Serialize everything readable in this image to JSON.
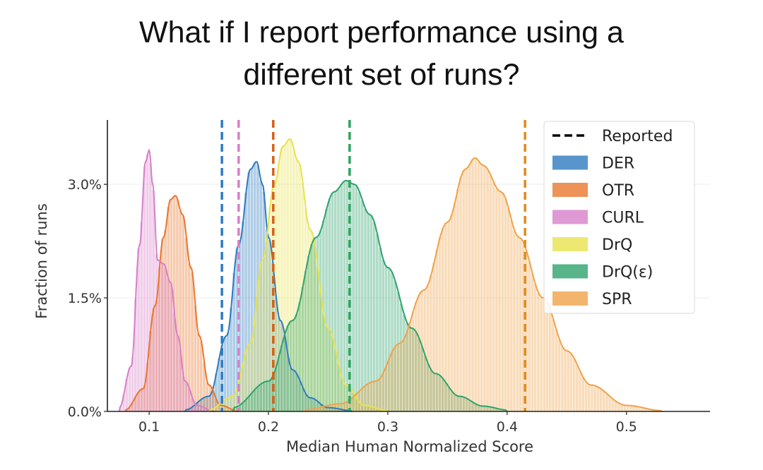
{
  "title_line1": "What if I report performance using a",
  "title_line2": "different set of runs?",
  "chart_data": {
    "type": "area",
    "xlabel": "Median Human Normalized Score",
    "ylabel": "Fraction of runs",
    "xlim": [
      0.065,
      0.57
    ],
    "ylim": [
      0,
      3.85
    ],
    "xticks": [
      0.1,
      0.2,
      0.3,
      0.4,
      0.5
    ],
    "xtick_labels": [
      "0.1",
      "0.2",
      "0.3",
      "0.4",
      "0.5"
    ],
    "yticks": [
      0,
      1.5,
      3.0
    ],
    "ytick_labels": [
      "0.0%",
      "1.5%",
      "3.0%"
    ],
    "grid": true,
    "legend_position": "top-right",
    "legend_reported_label": "Reported",
    "series": [
      {
        "name": "DER",
        "color": "#2e7bbf",
        "reported": 0.161,
        "x": [
          0.13,
          0.15,
          0.165,
          0.175,
          0.185,
          0.19,
          0.195,
          0.2,
          0.21,
          0.22,
          0.235,
          0.25,
          0.27
        ],
        "y": [
          0.02,
          0.2,
          1.0,
          2.2,
          3.2,
          3.3,
          3.0,
          2.3,
          1.2,
          0.55,
          0.18,
          0.05,
          0.01
        ]
      },
      {
        "name": "OTR",
        "color": "#e8772e",
        "reported": 0.204,
        "x": [
          0.08,
          0.095,
          0.105,
          0.112,
          0.118,
          0.122,
          0.128,
          0.135,
          0.142,
          0.15,
          0.16,
          0.175
        ],
        "y": [
          0.02,
          0.3,
          1.4,
          2.3,
          2.8,
          2.85,
          2.6,
          1.9,
          1.0,
          0.35,
          0.08,
          0.0
        ]
      },
      {
        "name": "CURL",
        "color": "#d77fc9",
        "reported": 0.175,
        "x": [
          0.075,
          0.085,
          0.092,
          0.097,
          0.1,
          0.103,
          0.107,
          0.112,
          0.118,
          0.124,
          0.13,
          0.14,
          0.155
        ],
        "y": [
          0.05,
          0.6,
          2.2,
          3.3,
          3.45,
          3.0,
          2.0,
          1.95,
          1.7,
          1.0,
          0.4,
          0.08,
          0.0
        ]
      },
      {
        "name": "DrQ",
        "color": "#e8e24f",
        "reported": 0.268,
        "x": [
          0.15,
          0.17,
          0.185,
          0.195,
          0.205,
          0.212,
          0.218,
          0.225,
          0.235,
          0.25,
          0.265,
          0.28,
          0.3
        ],
        "y": [
          0.02,
          0.2,
          0.9,
          2.0,
          3.0,
          3.5,
          3.6,
          3.3,
          2.4,
          1.1,
          0.35,
          0.08,
          0.01
        ]
      },
      {
        "name": "DrQ(ε)",
        "color": "#2ea36c",
        "reported": 0.268,
        "x": [
          0.17,
          0.2,
          0.22,
          0.24,
          0.255,
          0.265,
          0.272,
          0.285,
          0.3,
          0.32,
          0.34,
          0.36,
          0.38,
          0.4
        ],
        "y": [
          0.05,
          0.4,
          1.2,
          2.3,
          2.9,
          3.05,
          3.0,
          2.6,
          1.9,
          1.1,
          0.5,
          0.2,
          0.07,
          0.02
        ]
      },
      {
        "name": "SPR",
        "color": "#f0a24a",
        "reported": 0.415,
        "x": [
          0.23,
          0.26,
          0.29,
          0.31,
          0.33,
          0.35,
          0.365,
          0.373,
          0.38,
          0.395,
          0.41,
          0.43,
          0.45,
          0.47,
          0.5,
          0.53
        ],
        "y": [
          0.02,
          0.1,
          0.4,
          0.9,
          1.6,
          2.5,
          3.2,
          3.35,
          3.25,
          2.9,
          2.3,
          1.5,
          0.8,
          0.35,
          0.08,
          0.01
        ]
      }
    ]
  }
}
